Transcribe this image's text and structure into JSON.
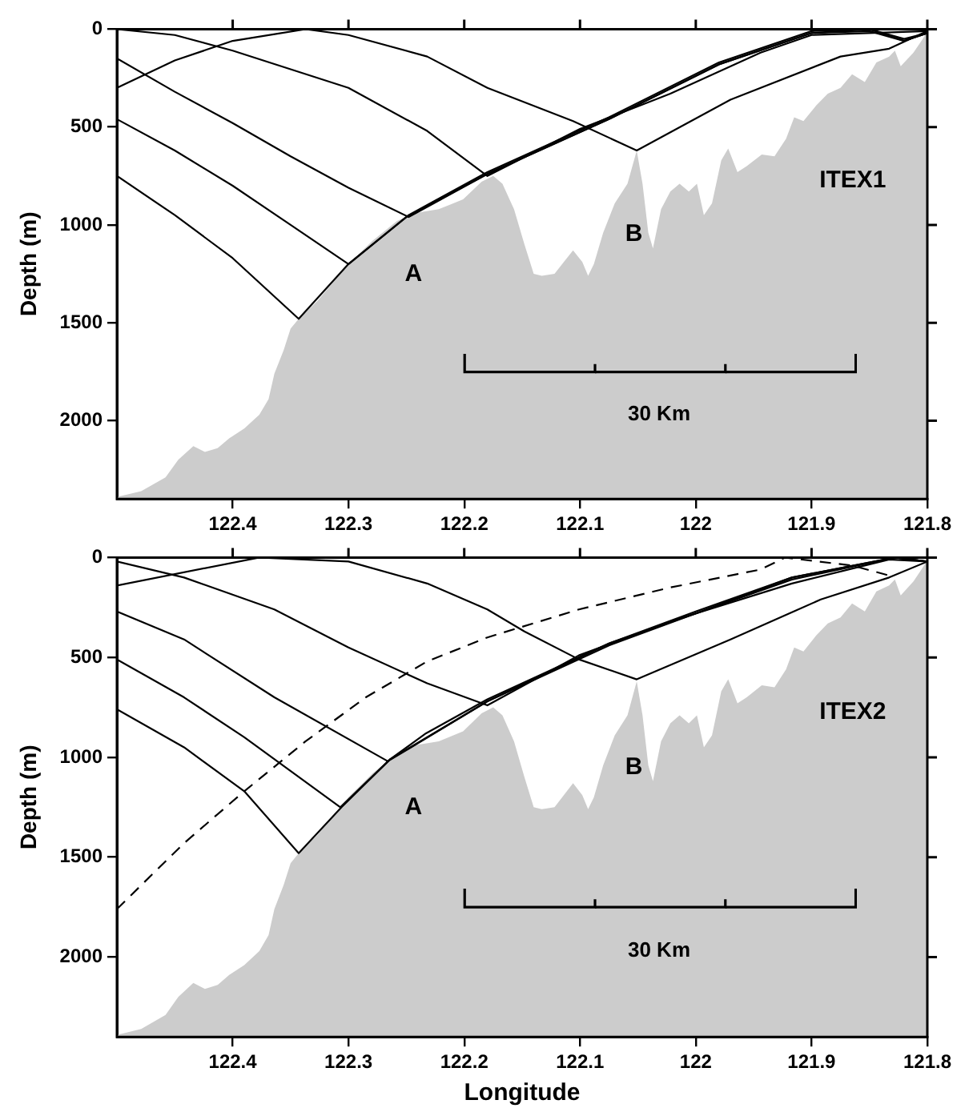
{
  "chart_data": [
    {
      "type": "line",
      "title": "ITEX1",
      "ylabel": "Depth (m)",
      "xlim": [
        122.5,
        121.8
      ],
      "xticks": [
        122.4,
        122.3,
        122.2,
        122.1,
        122,
        121.9,
        121.8
      ],
      "ylim": [
        2400,
        0
      ],
      "yticks": [
        0,
        500,
        1000,
        1500,
        2000
      ],
      "grid": false,
      "legend": false,
      "marker": "none",
      "annotations": [
        "A",
        "B",
        "30 Km"
      ],
      "series": [
        {
          "type": "area",
          "color": "#cccccc",
          "x": [
            122.5,
            122.479,
            122.458,
            122.447,
            122.434,
            122.424,
            122.413,
            122.403,
            122.39,
            122.377,
            122.369,
            122.364,
            122.356,
            122.35,
            122.343,
            122.327,
            122.3,
            122.279,
            122.258,
            122.243,
            122.222,
            122.201,
            122.185,
            122.175,
            122.167,
            122.157,
            122.148,
            122.14,
            122.133,
            122.122,
            122.114,
            122.106,
            122.098,
            122.093,
            122.088,
            122.08,
            122.07,
            122.059,
            122.051,
            122.046,
            122.041,
            122.037,
            122.03,
            122.022,
            122.014,
            122.006,
            121.999,
            121.993,
            121.986,
            121.978,
            121.972,
            121.964,
            121.956,
            121.943,
            121.932,
            121.922,
            121.915,
            121.907,
            121.896,
            121.886,
            121.875,
            121.865,
            121.854,
            121.844,
            121.833,
            121.828,
            121.823,
            121.812,
            121.804,
            121.8,
            121.8
          ],
          "values": [
            2390,
            2360,
            2290,
            2200,
            2130,
            2160,
            2140,
            2090,
            2040,
            1970,
            1890,
            1760,
            1640,
            1530,
            1480,
            1390,
            1200,
            1080,
            980,
            940,
            920,
            870,
            780,
            750,
            790,
            920,
            1100,
            1250,
            1260,
            1250,
            1190,
            1130,
            1190,
            1260,
            1200,
            1040,
            890,
            790,
            620,
            790,
            1040,
            1120,
            920,
            830,
            790,
            830,
            790,
            950,
            890,
            670,
            610,
            730,
            700,
            640,
            650,
            560,
            450,
            470,
            390,
            330,
            300,
            230,
            270,
            170,
            140,
            110,
            190,
            120,
            50,
            10,
            2400
          ]
        },
        {
          "color": "#000000",
          "x": [
            122.5,
            122.45,
            122.4,
            122.343,
            122.3,
            122.248,
            122.18,
            122.075,
            121.98,
            121.9,
            121.85,
            121.82,
            121.8
          ],
          "values": [
            750,
            950,
            1170,
            1480,
            1200,
            950,
            730,
            450,
            170,
            10,
            0,
            50,
            20
          ]
        },
        {
          "color": "#000000",
          "x": [
            122.5,
            122.45,
            122.4,
            122.35,
            122.3,
            122.25,
            122.18,
            122.075,
            121.98,
            121.9,
            121.85,
            121.82,
            121.8
          ],
          "values": [
            460,
            620,
            800,
            1000,
            1200,
            960,
            740,
            460,
            180,
            20,
            0,
            60,
            20
          ]
        },
        {
          "color": "#000000",
          "x": [
            122.5,
            122.45,
            122.4,
            122.35,
            122.3,
            122.248,
            122.18,
            122.075,
            121.98,
            121.9,
            121.85,
            121.82,
            121.8
          ],
          "values": [
            150,
            320,
            480,
            650,
            810,
            960,
            740,
            460,
            180,
            20,
            10,
            60,
            20
          ]
        },
        {
          "color": "#000000",
          "x": [
            122.5,
            122.45,
            122.4,
            122.337,
            122.3,
            122.232,
            122.18,
            122.106,
            122.051,
            121.97,
            121.875,
            121.833,
            121.8
          ],
          "values": [
            300,
            160,
            60,
            0,
            30,
            140,
            300,
            470,
            620,
            360,
            140,
            100,
            10
          ]
        },
        {
          "color": "#000000",
          "x": [
            122.5,
            122.45,
            122.4,
            122.3,
            122.232,
            122.18,
            122.1,
            122.022,
            121.944,
            121.9,
            121.8
          ],
          "values": [
            0,
            30,
            110,
            300,
            520,
            750,
            510,
            330,
            120,
            30,
            10
          ]
        }
      ]
    },
    {
      "type": "line",
      "title": "ITEX2",
      "xlabel": "Longitude",
      "ylabel": "Depth (m)",
      "xlim": [
        122.5,
        121.8
      ],
      "xticks": [
        122.4,
        122.3,
        122.2,
        122.1,
        122,
        121.9,
        121.8
      ],
      "ylim": [
        2400,
        0
      ],
      "yticks": [
        0,
        500,
        1000,
        1500,
        2000
      ],
      "grid": false,
      "legend": false,
      "marker": "none",
      "annotations": [
        "A",
        "B",
        "30 Km"
      ],
      "series": [
        {
          "type": "area",
          "color": "#cccccc",
          "x": [
            122.5,
            122.479,
            122.458,
            122.447,
            122.434,
            122.424,
            122.413,
            122.403,
            122.39,
            122.377,
            122.369,
            122.364,
            122.356,
            122.35,
            122.343,
            122.327,
            122.3,
            122.279,
            122.258,
            122.243,
            122.222,
            122.201,
            122.185,
            122.175,
            122.167,
            122.157,
            122.148,
            122.14,
            122.133,
            122.122,
            122.114,
            122.106,
            122.098,
            122.093,
            122.088,
            122.08,
            122.07,
            122.059,
            122.051,
            122.046,
            122.041,
            122.037,
            122.03,
            122.022,
            122.014,
            122.006,
            121.999,
            121.993,
            121.986,
            121.978,
            121.972,
            121.964,
            121.956,
            121.943,
            121.932,
            121.922,
            121.915,
            121.907,
            121.896,
            121.886,
            121.875,
            121.865,
            121.854,
            121.844,
            121.833,
            121.828,
            121.823,
            121.812,
            121.804,
            121.8,
            121.8
          ],
          "values": [
            2390,
            2360,
            2290,
            2200,
            2130,
            2160,
            2140,
            2090,
            2040,
            1970,
            1890,
            1760,
            1640,
            1530,
            1480,
            1390,
            1200,
            1080,
            980,
            940,
            920,
            870,
            780,
            750,
            790,
            920,
            1100,
            1250,
            1260,
            1250,
            1190,
            1130,
            1190,
            1260,
            1200,
            1040,
            890,
            790,
            620,
            790,
            1040,
            1120,
            920,
            830,
            790,
            830,
            790,
            950,
            890,
            670,
            610,
            730,
            700,
            640,
            650,
            560,
            450,
            470,
            390,
            330,
            300,
            230,
            270,
            170,
            140,
            110,
            190,
            120,
            50,
            10,
            2400
          ]
        },
        {
          "color": "#000000",
          "x": [
            122.5,
            122.442,
            122.39,
            122.343,
            122.306,
            122.264,
            122.233,
            122.18,
            122.075,
            122.0,
            121.917,
            121.828,
            121.8
          ],
          "values": [
            760,
            950,
            1170,
            1480,
            1250,
            1010,
            880,
            710,
            430,
            270,
            100,
            0,
            20
          ]
        },
        {
          "color": "#000000",
          "x": [
            122.5,
            122.442,
            122.39,
            122.307,
            122.264,
            122.18,
            122.075,
            122.0,
            121.917,
            121.828,
            121.8
          ],
          "values": [
            510,
            700,
            900,
            1250,
            1010,
            720,
            430,
            280,
            100,
            0,
            20
          ]
        },
        {
          "color": "#000000",
          "x": [
            122.5,
            122.442,
            122.364,
            122.266,
            122.18,
            122.075,
            122.0,
            121.917,
            121.828,
            121.8
          ],
          "values": [
            270,
            410,
            700,
            1020,
            720,
            440,
            280,
            110,
            0,
            20
          ]
        },
        {
          "color": "#000000",
          "x": [
            122.5,
            122.377,
            122.3,
            122.232,
            122.18,
            122.148,
            122.101,
            122.051,
            121.97,
            121.892,
            121.833,
            121.8
          ],
          "values": [
            140,
            0,
            20,
            130,
            260,
            370,
            510,
            610,
            410,
            210,
            100,
            20
          ]
        },
        {
          "color": "#000000",
          "x": [
            122.5,
            122.442,
            122.364,
            122.3,
            122.232,
            122.18,
            122.101,
            122.022,
            121.917,
            121.833,
            121.8
          ],
          "values": [
            20,
            100,
            260,
            450,
            630,
            740,
            490,
            320,
            130,
            10,
            20
          ]
        },
        {
          "color": "#000000",
          "line_style": "dashed",
          "x": [
            122.5,
            122.442,
            122.39,
            122.337,
            122.285,
            122.232,
            122.18,
            122.101,
            122.022,
            121.944,
            121.923,
            121.865,
            121.833
          ],
          "values": [
            1760,
            1430,
            1170,
            920,
            700,
            520,
            400,
            260,
            150,
            60,
            0,
            40,
            90
          ]
        }
      ]
    }
  ]
}
